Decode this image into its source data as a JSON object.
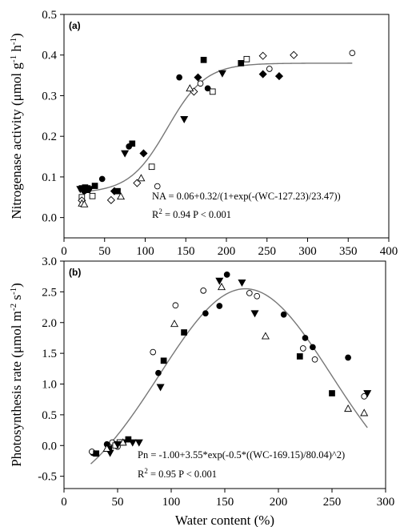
{
  "chart_data": [
    {
      "type": "scatter",
      "panel_label": "(a)",
      "ylabel_parts": [
        "Nitrogenase activity (",
        "μmol g",
        "-1",
        " h",
        "-1",
        ")"
      ],
      "xlim": [
        0,
        400
      ],
      "ylim": [
        -0.05,
        0.5
      ],
      "x_ticks": [
        "0",
        "50",
        "100",
        "150",
        "200",
        "250",
        "300",
        "350",
        "400"
      ],
      "y_ticks": [
        "0.0",
        "0.1",
        "0.2",
        "0.3",
        "0.4",
        "0.5"
      ],
      "equation": "NA = 0.06+0.32/(1+exp(-(WC-127.23)/23.47))",
      "r2_prefix": "R",
      "r2_sup": "2",
      "stats": " = 0.94  P < 0.001",
      "fit": {
        "model": "logistic",
        "a": 0.06,
        "b": 0.32,
        "x0": 127.23,
        "k": 23.47
      },
      "series": [
        {
          "marker": "circle",
          "filled": true,
          "points": [
            [
              25,
              0.065
            ],
            [
              28,
              0.068
            ],
            [
              47,
              0.095
            ],
            [
              80,
              0.175
            ],
            [
              142,
              0.345
            ],
            [
              177,
              0.318
            ]
          ]
        },
        {
          "marker": "circle",
          "filled": false,
          "points": [
            [
              115,
              0.077
            ],
            [
              168,
              0.33
            ],
            [
              253,
              0.366
            ],
            [
              355,
              0.405
            ]
          ]
        },
        {
          "marker": "square",
          "filled": true,
          "points": [
            [
              22,
              0.072
            ],
            [
              26,
              0.074
            ],
            [
              28,
              0.068
            ],
            [
              38,
              0.078
            ],
            [
              66,
              0.065
            ],
            [
              84,
              0.182
            ],
            [
              172,
              0.388
            ],
            [
              218,
              0.38
            ]
          ]
        },
        {
          "marker": "square",
          "filled": false,
          "points": [
            [
              22,
              0.05
            ],
            [
              35,
              0.053
            ],
            [
              108,
              0.125
            ],
            [
              183,
              0.31
            ],
            [
              225,
              0.39
            ]
          ]
        },
        {
          "marker": "diamond",
          "filled": true,
          "points": [
            [
              62,
              0.065
            ],
            [
              98,
              0.158
            ],
            [
              165,
              0.345
            ],
            [
              245,
              0.353
            ],
            [
              265,
              0.348
            ]
          ]
        },
        {
          "marker": "diamond",
          "filled": false,
          "points": [
            [
              22,
              0.042
            ],
            [
              58,
              0.043
            ],
            [
              90,
              0.085
            ],
            [
              160,
              0.31
            ],
            [
              245,
              0.398
            ],
            [
              283,
              0.4
            ]
          ]
        },
        {
          "marker": "triangle-down",
          "filled": true,
          "points": [
            [
              20,
              0.07
            ],
            [
              28,
              0.072
            ],
            [
              32,
              0.07
            ],
            [
              75,
              0.158
            ],
            [
              148,
              0.242
            ],
            [
              195,
              0.355
            ]
          ]
        },
        {
          "marker": "triangle-up",
          "filled": false,
          "points": [
            [
              22,
              0.035
            ],
            [
              25,
              0.033
            ],
            [
              70,
              0.052
            ],
            [
              95,
              0.097
            ],
            [
              155,
              0.318
            ]
          ]
        }
      ]
    },
    {
      "type": "scatter",
      "panel_label": "(b)",
      "ylabel_parts": [
        "Photosynthesis rate (",
        "μmol m",
        "-2",
        " s",
        "-1",
        ")"
      ],
      "xlabel": "Water content (%)",
      "xlim": [
        0,
        300
      ],
      "ylim": [
        -0.7,
        3.0
      ],
      "x_ticks": [
        "0",
        "50",
        "100",
        "150",
        "200",
        "250",
        "300"
      ],
      "y_ticks": [
        "-0.5",
        "0.0",
        "0.5",
        "1.0",
        "1.5",
        "2.0",
        "2.5",
        "3.0"
      ],
      "equation": "Pn = -1.00+3.55*exp(-0.5*((WC-169.15)/80.04)^2)",
      "r2_prefix": "R",
      "r2_sup": "2",
      "stats": " = 0.95  P < 0.001",
      "fit": {
        "model": "gaussian",
        "a": -1.0,
        "b": 3.55,
        "x0": 169.15,
        "s": 80.04
      },
      "series": [
        {
          "marker": "circle",
          "filled": true,
          "points": [
            [
              27,
              -0.12
            ],
            [
              40,
              0.02
            ],
            [
              88,
              1.18
            ],
            [
              132,
              2.15
            ],
            [
              145,
              2.27
            ],
            [
              152,
              2.78
            ],
            [
              205,
              2.13
            ],
            [
              225,
              1.75
            ],
            [
              232,
              1.6
            ],
            [
              265,
              1.43
            ]
          ]
        },
        {
          "marker": "circle",
          "filled": false,
          "points": [
            [
              26,
              -0.1
            ],
            [
              45,
              0.05
            ],
            [
              50,
              -0.02
            ],
            [
              83,
              1.52
            ],
            [
              104,
              2.28
            ],
            [
              130,
              2.52
            ],
            [
              173,
              2.48
            ],
            [
              180,
              2.43
            ],
            [
              223,
              1.58
            ],
            [
              234,
              1.4
            ],
            [
              280,
              0.8
            ]
          ]
        },
        {
          "marker": "square",
          "filled": true,
          "points": [
            [
              30,
              -0.13
            ],
            [
              42,
              -0.05
            ],
            [
              55,
              0.05
            ],
            [
              60,
              0.1
            ],
            [
              93,
              1.38
            ],
            [
              112,
              1.84
            ],
            [
              220,
              1.45
            ],
            [
              250,
              0.85
            ]
          ]
        },
        {
          "marker": "square",
          "filled": false,
          "points": [
            [
              48,
              0.0
            ],
            [
              52,
              0.05
            ]
          ]
        },
        {
          "marker": "triangle-down",
          "filled": true,
          "points": [
            [
              43,
              -0.12
            ],
            [
              50,
              0.02
            ],
            [
              64,
              0.05
            ],
            [
              70,
              0.05
            ],
            [
              90,
              0.95
            ],
            [
              145,
              2.68
            ],
            [
              166,
              2.65
            ],
            [
              178,
              2.15
            ],
            [
              283,
              0.85
            ]
          ]
        },
        {
          "marker": "triangle-up",
          "filled": false,
          "points": [
            [
              40,
              -0.05
            ],
            [
              55,
              0.05
            ],
            [
              103,
              1.98
            ],
            [
              147,
              2.58
            ],
            [
              188,
              1.78
            ],
            [
              265,
              0.6
            ],
            [
              280,
              0.53
            ]
          ]
        }
      ]
    }
  ]
}
